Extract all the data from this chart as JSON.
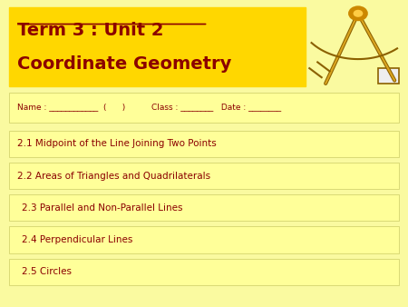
{
  "bg_color": "#FAFAA0",
  "title_bg_color": "#FFD700",
  "title_line1": "Term 3 : Unit 2",
  "title_line2": "Coordinate Geometry",
  "title_color": "#8B0000",
  "name_row_text": "Name : ____________  (      )          Class : ________   Date : ________",
  "sections": [
    "2.1 Midpoint of the Line Joining Two Points",
    "2.2 Areas of Triangles and Quadrilaterals",
    "2.3 Parallel and Non-Parallel Lines",
    "2.4 Perpendicular Lines",
    "2.5 Circles"
  ],
  "section_text_color": "#8B0000",
  "section_bg_color": "#FFFF99",
  "section_border_color": "#CCCC66"
}
